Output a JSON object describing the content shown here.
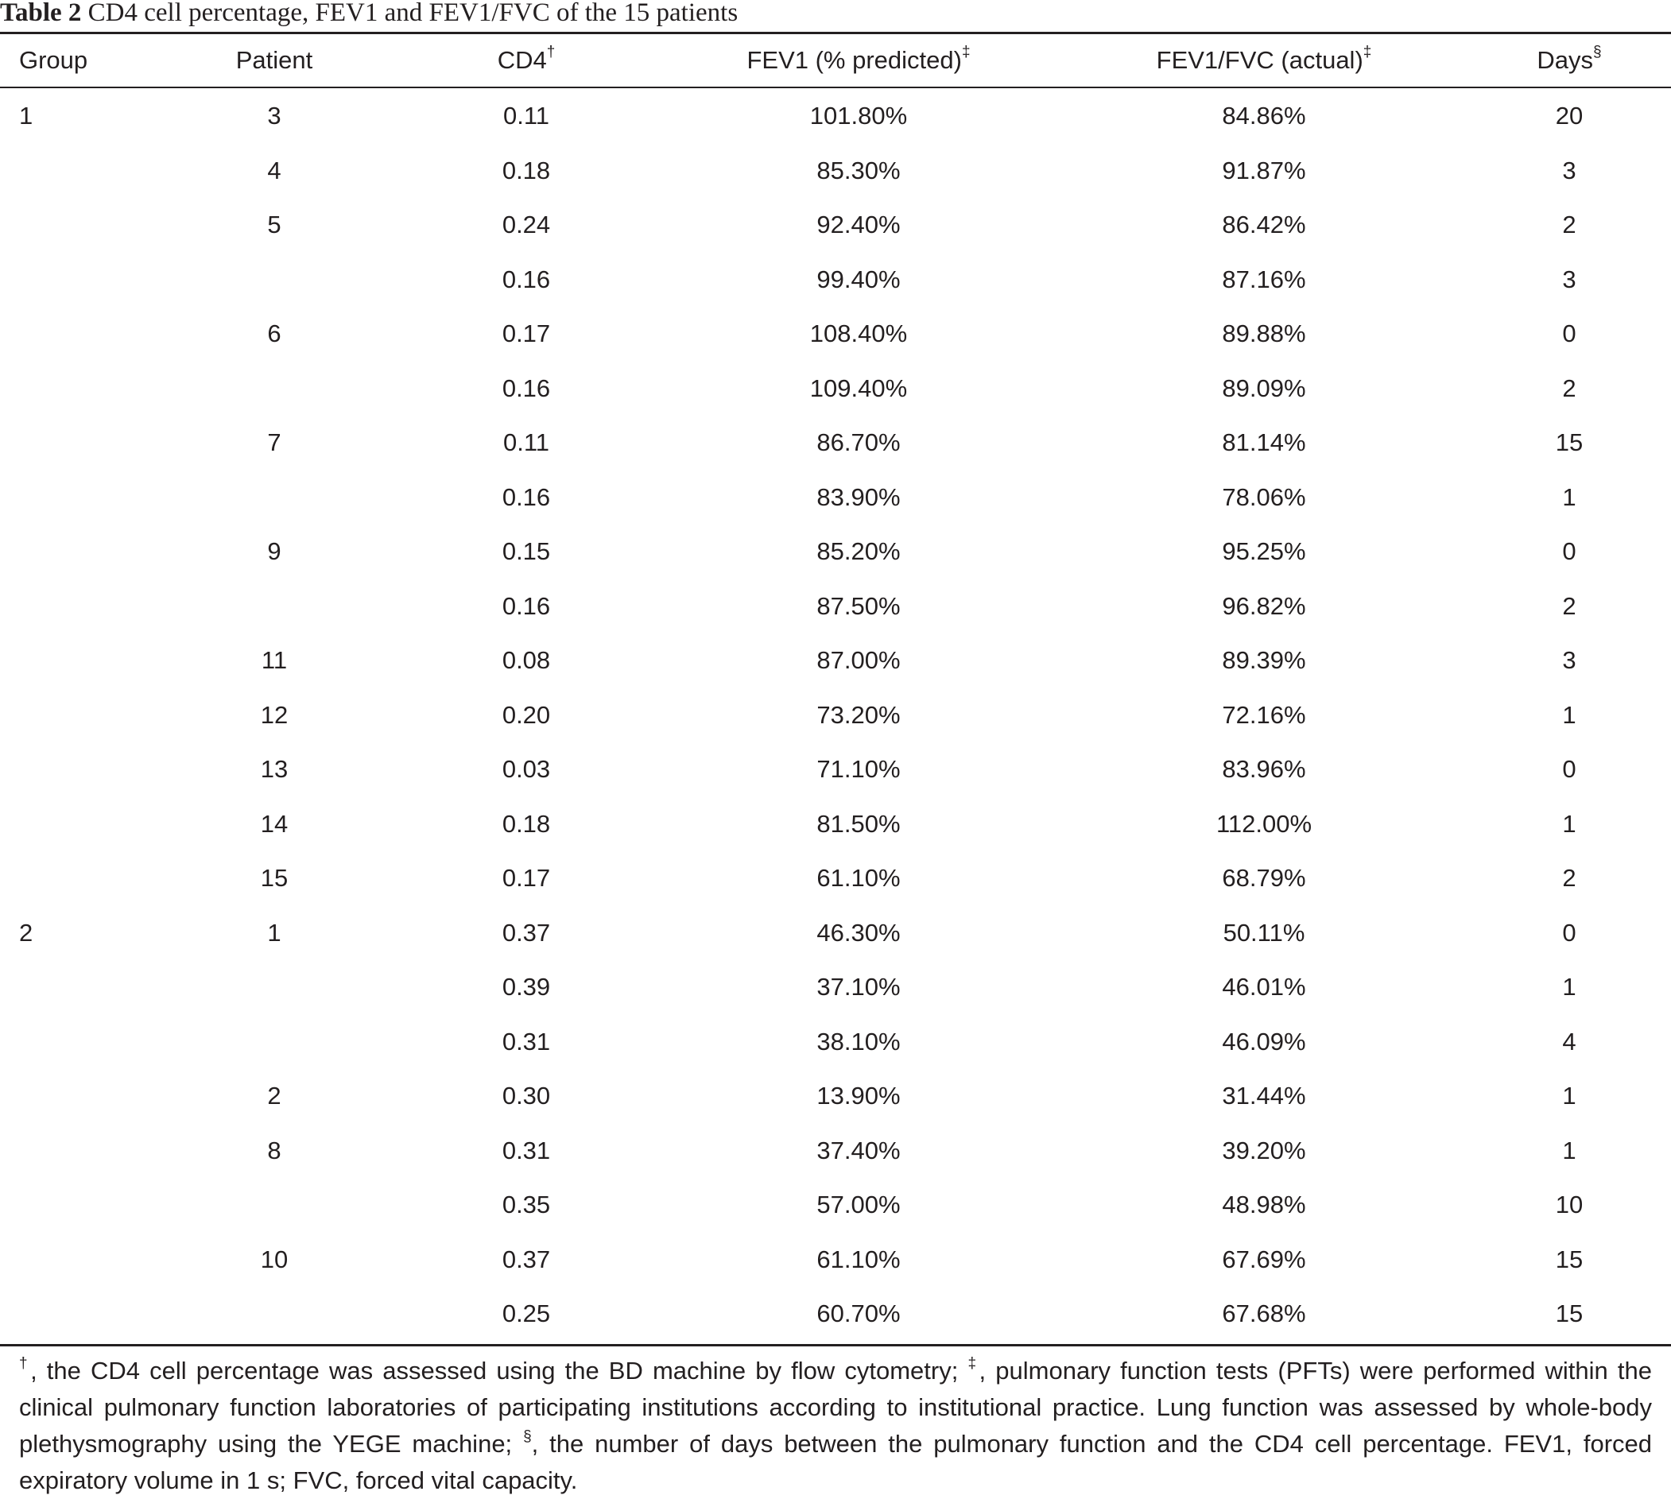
{
  "caption": {
    "label": "Table 2",
    "text": " CD4 cell percentage, FEV1 and FEV1/FVC of the 15 patients"
  },
  "columns": [
    {
      "key": "group",
      "label": "Group",
      "mark": ""
    },
    {
      "key": "patient",
      "label": "Patient",
      "mark": ""
    },
    {
      "key": "cd4",
      "label": "CD4",
      "mark": "†"
    },
    {
      "key": "fev1",
      "label": "FEV1 (% predicted)",
      "mark": "‡"
    },
    {
      "key": "ratio",
      "label": "FEV1/FVC (actual)",
      "mark": "‡"
    },
    {
      "key": "days",
      "label": "Days",
      "mark": "§"
    }
  ],
  "rows": [
    {
      "group": "1",
      "patient": "3",
      "cd4": "0.11",
      "fev1": "101.80%",
      "ratio": "84.86%",
      "days": "20"
    },
    {
      "group": "",
      "patient": "4",
      "cd4": "0.18",
      "fev1": "85.30%",
      "ratio": "91.87%",
      "days": "3"
    },
    {
      "group": "",
      "patient": "5",
      "cd4": "0.24",
      "fev1": "92.40%",
      "ratio": "86.42%",
      "days": "2"
    },
    {
      "group": "",
      "patient": "",
      "cd4": "0.16",
      "fev1": "99.40%",
      "ratio": "87.16%",
      "days": "3"
    },
    {
      "group": "",
      "patient": "6",
      "cd4": "0.17",
      "fev1": "108.40%",
      "ratio": "89.88%",
      "days": "0"
    },
    {
      "group": "",
      "patient": "",
      "cd4": "0.16",
      "fev1": "109.40%",
      "ratio": "89.09%",
      "days": "2"
    },
    {
      "group": "",
      "patient": "7",
      "cd4": "0.11",
      "fev1": "86.70%",
      "ratio": "81.14%",
      "days": "15"
    },
    {
      "group": "",
      "patient": "",
      "cd4": "0.16",
      "fev1": "83.90%",
      "ratio": "78.06%",
      "days": "1"
    },
    {
      "group": "",
      "patient": "9",
      "cd4": "0.15",
      "fev1": "85.20%",
      "ratio": "95.25%",
      "days": "0"
    },
    {
      "group": "",
      "patient": "",
      "cd4": "0.16",
      "fev1": "87.50%",
      "ratio": "96.82%",
      "days": "2"
    },
    {
      "group": "",
      "patient": "11",
      "cd4": "0.08",
      "fev1": "87.00%",
      "ratio": "89.39%",
      "days": "3"
    },
    {
      "group": "",
      "patient": "12",
      "cd4": "0.20",
      "fev1": "73.20%",
      "ratio": "72.16%",
      "days": "1"
    },
    {
      "group": "",
      "patient": "13",
      "cd4": "0.03",
      "fev1": "71.10%",
      "ratio": "83.96%",
      "days": "0"
    },
    {
      "group": "",
      "patient": "14",
      "cd4": "0.18",
      "fev1": "81.50%",
      "ratio": "112.00%",
      "days": "1"
    },
    {
      "group": "",
      "patient": "15",
      "cd4": "0.17",
      "fev1": "61.10%",
      "ratio": "68.79%",
      "days": "2"
    },
    {
      "group": "2",
      "patient": "1",
      "cd4": "0.37",
      "fev1": "46.30%",
      "ratio": "50.11%",
      "days": "0"
    },
    {
      "group": "",
      "patient": "",
      "cd4": "0.39",
      "fev1": "37.10%",
      "ratio": "46.01%",
      "days": "1"
    },
    {
      "group": "",
      "patient": "",
      "cd4": "0.31",
      "fev1": "38.10%",
      "ratio": "46.09%",
      "days": "4"
    },
    {
      "group": "",
      "patient": "2",
      "cd4": "0.30",
      "fev1": "13.90%",
      "ratio": "31.44%",
      "days": "1"
    },
    {
      "group": "",
      "patient": "8",
      "cd4": "0.31",
      "fev1": "37.40%",
      "ratio": "39.20%",
      "days": "1"
    },
    {
      "group": "",
      "patient": "",
      "cd4": "0.35",
      "fev1": "57.00%",
      "ratio": "48.98%",
      "days": "10"
    },
    {
      "group": "",
      "patient": "10",
      "cd4": "0.37",
      "fev1": "61.10%",
      "ratio": "67.69%",
      "days": "15"
    },
    {
      "group": "",
      "patient": "",
      "cd4": "0.25",
      "fev1": "60.70%",
      "ratio": "67.68%",
      "days": "15"
    }
  ],
  "footnote": [
    {
      "mark": "†",
      "text": ", the CD4 cell percentage was assessed using the BD machine by flow cytometry; "
    },
    {
      "mark": "‡",
      "text": ", pulmonary function tests (PFTs) were performed within the clinical pulmonary function laboratories of participating institutions according to institutional practice. Lung function was assessed by whole-body plethysmography using the YEGE machine; "
    },
    {
      "mark": "§",
      "text": ", the number of days between the pulmonary function and the CD4 cell percentage. FEV1, forced expiratory volume in 1 s; FVC, forced vital capacity."
    }
  ]
}
